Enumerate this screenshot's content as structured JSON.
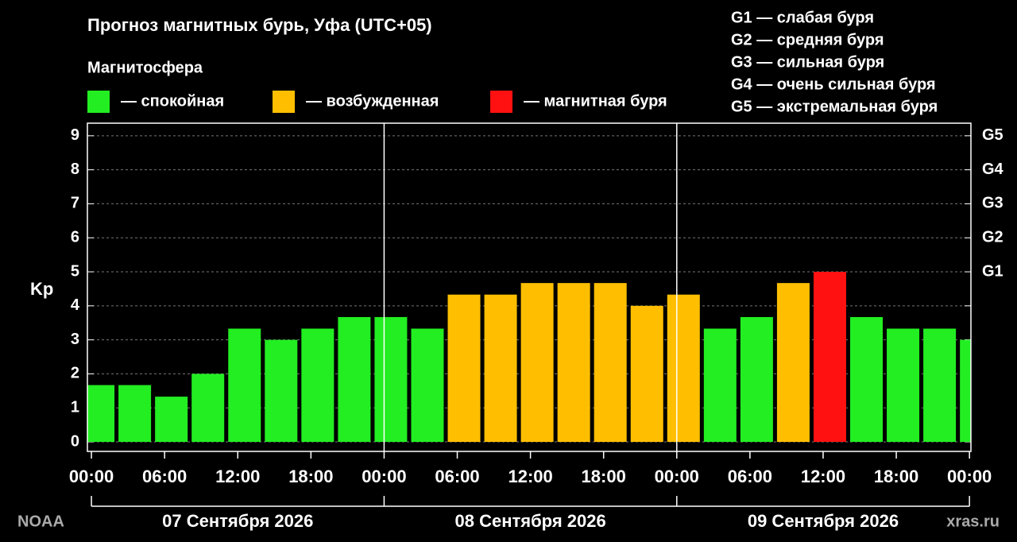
{
  "chart_data": {
    "type": "bar",
    "title": "Прогноз магнитных бурь, Уфа (UTC+05)",
    "legend_title": "Магнитосфера",
    "legend": [
      {
        "name": "— спокойная",
        "color": "#22ee22"
      },
      {
        "name": "— возбужденная",
        "color": "#ffbf00"
      },
      {
        "name": "— магнитная буря",
        "color": "#ff1111"
      }
    ],
    "g_scale": [
      "G1 — слабая буря",
      "G2 — средняя буря",
      "G3 — сильная буря",
      "G4 — очень сильная буря",
      "G5 — экстремальная буря"
    ],
    "y_label": "Kp",
    "x": [
      0,
      3,
      6,
      9,
      12,
      15,
      18,
      21,
      24,
      27,
      30,
      33,
      36,
      39,
      42,
      45,
      48,
      51,
      54,
      57,
      60,
      63,
      66,
      69,
      72
    ],
    "values": [
      1.67,
      1.67,
      1.33,
      2,
      3.33,
      3,
      3.33,
      3.67,
      3.67,
      3.33,
      4.33,
      4.33,
      4.67,
      4.67,
      4.67,
      4,
      4.33,
      3.33,
      3.67,
      4.67,
      5,
      3.67,
      3.33,
      3.33,
      3
    ],
    "colors": [
      "#22ee22",
      "#22ee22",
      "#22ee22",
      "#22ee22",
      "#22ee22",
      "#22ee22",
      "#22ee22",
      "#22ee22",
      "#22ee22",
      "#22ee22",
      "#ffbf00",
      "#ffbf00",
      "#ffbf00",
      "#ffbf00",
      "#ffbf00",
      "#ffbf00",
      "#ffbf00",
      "#22ee22",
      "#22ee22",
      "#ffbf00",
      "#ff1111",
      "#22ee22",
      "#22ee22",
      "#22ee22",
      "#22ee22"
    ],
    "xlim": [
      -0.33,
      72.12
    ],
    "xticks": [
      {
        "value": 0,
        "label": "00:00"
      },
      {
        "value": 6,
        "label": "06:00"
      },
      {
        "value": 12,
        "label": "12:00"
      },
      {
        "value": 18,
        "label": "18:00"
      },
      {
        "value": 24,
        "label": "00:00"
      },
      {
        "value": 30,
        "label": "06:00"
      },
      {
        "value": 36,
        "label": "12:00"
      },
      {
        "value": 42,
        "label": "18:00"
      },
      {
        "value": 48,
        "label": "00:00"
      },
      {
        "value": 54,
        "label": "06:00"
      },
      {
        "value": 60,
        "label": "12:00"
      },
      {
        "value": 66,
        "label": "18:00"
      },
      {
        "value": 72,
        "label": "00:00"
      }
    ],
    "ylim": [
      -0.28,
      9.37
    ],
    "yticks": [
      0,
      1,
      2,
      3,
      4,
      5,
      6,
      7,
      8,
      9
    ],
    "y2lim": [
      -0.28,
      9.37
    ],
    "y2ticks": [
      {
        "value": 5,
        "label": "G1"
      },
      {
        "value": 6,
        "label": "G2"
      },
      {
        "value": 7,
        "label": "G3"
      },
      {
        "value": 8,
        "label": "G4"
      },
      {
        "value": 9,
        "label": "G5"
      }
    ],
    "grid": true,
    "days": [
      {
        "label": "07 Сентября 2026",
        "start": 0,
        "end": 24
      },
      {
        "label": "08 Сентября 2026",
        "start": 24,
        "end": 48
      },
      {
        "label": "09 Сентября 2026",
        "start": 48,
        "end": 72
      }
    ],
    "source_left": "NOAA",
    "source_right": "xras.ru"
  }
}
